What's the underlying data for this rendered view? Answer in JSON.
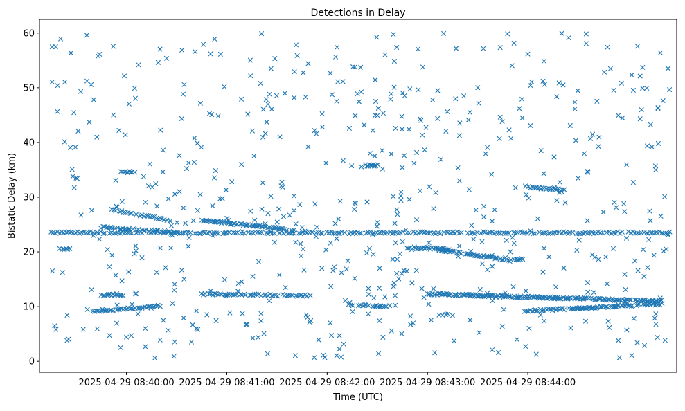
{
  "chart_data": {
    "type": "scatter",
    "title": "Detections in Delay",
    "xlabel": "Time (UTC)",
    "ylabel": "Bistatic Delay (km)",
    "marker": "x",
    "color": "#1f77b4",
    "xlim_seconds": [
      -52,
      329
    ],
    "ylim": [
      -2,
      62.5
    ],
    "x_ticks": [
      {
        "seconds": 0,
        "label": "2025-04-29 08:40:00"
      },
      {
        "seconds": 60,
        "label": "2025-04-29 08:41:00"
      },
      {
        "seconds": 120,
        "label": "2025-04-29 08:42:00"
      },
      {
        "seconds": 180,
        "label": "2025-04-29 08:43:00"
      },
      {
        "seconds": 240,
        "label": "2025-04-29 08:44:00"
      }
    ],
    "y_ticks": [
      0,
      10,
      20,
      30,
      40,
      50,
      60
    ],
    "x_unit_note": "x values are seconds relative to 2025-04-29 08:40:00 UTC",
    "tracks": [
      {
        "name": "track-23.5",
        "x_start": -45,
        "x_end": 325,
        "y_start": 23.5,
        "y_end": 23.5,
        "step": 1.3
      },
      {
        "name": "track-20.6",
        "x_start": -40,
        "x_end": -34,
        "y_start": 20.6,
        "y_end": 20.6,
        "step": 1.0
      },
      {
        "name": "track-9-10",
        "x_start": -20,
        "x_end": 20,
        "y_start": 9.0,
        "y_end": 10.2,
        "step": 1.0
      },
      {
        "name": "track-12a",
        "x_start": -15,
        "x_end": -2,
        "y_start": 12.1,
        "y_end": 12.1,
        "step": 1.0
      },
      {
        "name": "track-24.5",
        "x_start": -15,
        "x_end": 30,
        "y_start": 24.5,
        "y_end": 23.6,
        "step": 1.0
      },
      {
        "name": "track-27.5",
        "x_start": -10,
        "x_end": 30,
        "y_start": 27.8,
        "y_end": 25.5,
        "step": 1.2
      },
      {
        "name": "track-34.6",
        "x_start": -3,
        "x_end": 5,
        "y_start": 34.6,
        "y_end": 34.6,
        "step": 0.8
      },
      {
        "name": "track-25.8",
        "x_start": 45,
        "x_end": 100,
        "y_start": 25.8,
        "y_end": 24.0,
        "step": 0.8
      },
      {
        "name": "track-12b",
        "x_start": 45,
        "x_end": 110,
        "y_start": 12.3,
        "y_end": 12.0,
        "step": 1.1
      },
      {
        "name": "track-35.8",
        "x_start": 143,
        "x_end": 150,
        "y_start": 35.8,
        "y_end": 35.8,
        "step": 0.8
      },
      {
        "name": "track-10",
        "x_start": 133,
        "x_end": 160,
        "y_start": 10.3,
        "y_end": 10.0,
        "step": 1.2
      },
      {
        "name": "track-20.7",
        "x_start": 168,
        "x_end": 193,
        "y_start": 20.8,
        "y_end": 20.5,
        "step": 0.8
      },
      {
        "name": "track-20-18.4",
        "x_start": 185,
        "x_end": 230,
        "y_start": 20.5,
        "y_end": 18.4,
        "step": 0.8
      },
      {
        "name": "track-12c",
        "x_start": 180,
        "x_end": 320,
        "y_start": 12.3,
        "y_end": 11.0,
        "step": 0.7
      },
      {
        "name": "track-9.5-11",
        "x_start": 187,
        "x_end": 195,
        "y_start": 8.5,
        "y_end": 8.5,
        "step": 1.0
      },
      {
        "name": "track-9.4-10.5",
        "x_start": 238,
        "x_end": 320,
        "y_start": 9.2,
        "y_end": 10.5,
        "step": 0.8
      },
      {
        "name": "track-31.8",
        "x_start": 238,
        "x_end": 262,
        "y_start": 31.9,
        "y_end": 31.3,
        "step": 0.8
      },
      {
        "name": "track-18.5",
        "x_start": 232,
        "x_end": 238,
        "y_start": 18.6,
        "y_end": 18.6,
        "step": 0.9
      }
    ],
    "scatter_points": {
      "x_min": -45,
      "x_max": 325,
      "y_min": 0.5,
      "y_max": 60,
      "count": 620,
      "seed": 20250429
    }
  }
}
